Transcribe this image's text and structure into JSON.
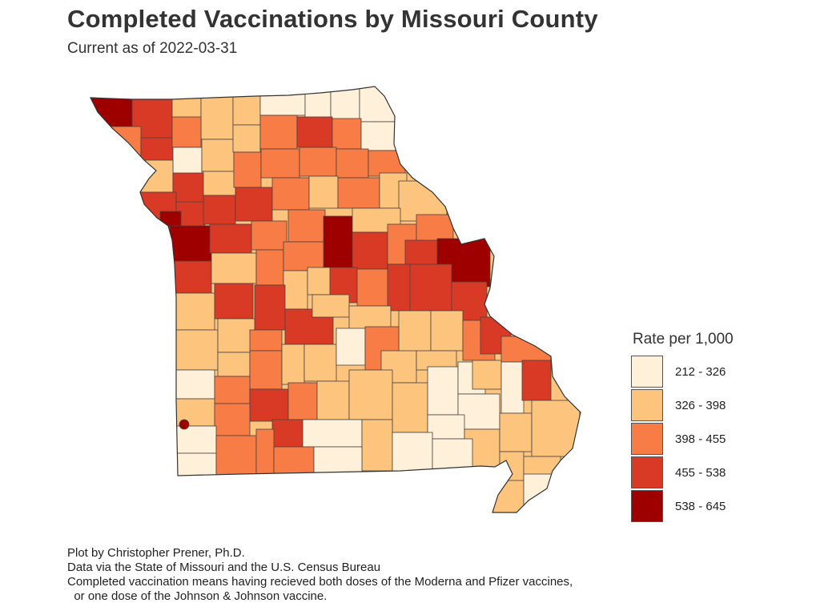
{
  "title": "Completed Vaccinations by Missouri County",
  "subtitle": "Current as of 2022-03-31",
  "legend": {
    "title": "Rate per 1,000",
    "items": [
      {
        "label": "212 - 326",
        "color": "#fef0d9"
      },
      {
        "label": "326 - 398",
        "color": "#fdc47d"
      },
      {
        "label": "398 - 455",
        "color": "#f77c46"
      },
      {
        "label": "455 - 538",
        "color": "#d83a26"
      },
      {
        "label": "538 - 645",
        "color": "#9e0000"
      }
    ]
  },
  "captions": [
    "Plot by Christopher Prener, Ph.D.",
    "Data via the State of Missouri and the U.S. Census Bureau",
    "Completed vaccination means having recieved both doses of the Moderna and Pfizer vaccines,",
    "  or one dose of the Johnson & Johnson vaccine."
  ]
}
